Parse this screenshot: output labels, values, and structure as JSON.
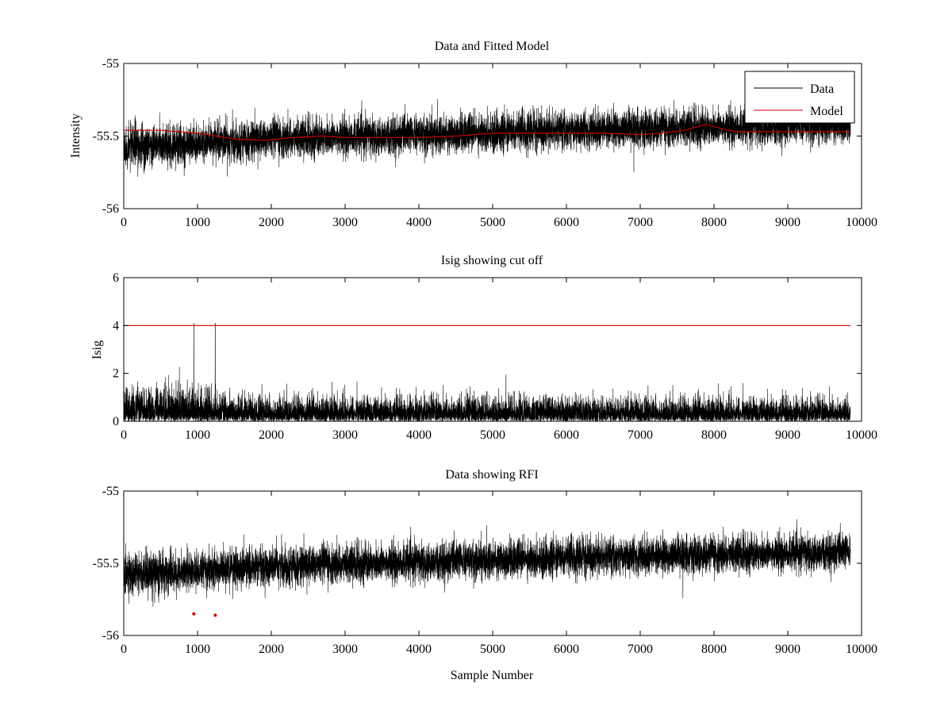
{
  "chart_data": [
    {
      "type": "line",
      "title": "Data and Fitted Model",
      "xlabel": "",
      "ylabel": "Intensity",
      "xlim": [
        0,
        10000
      ],
      "ylim": [
        -56,
        -55
      ],
      "x_ticks": [
        0,
        1000,
        2000,
        3000,
        4000,
        5000,
        6000,
        7000,
        8000,
        9000,
        10000
      ],
      "y_ticks": [
        -56,
        -55.5,
        -55
      ],
      "legend": {
        "placement": "top-right",
        "entries": [
          "Data",
          "Model"
        ]
      },
      "grid": false,
      "series": [
        {
          "name": "Data",
          "color": "#000000",
          "noise": true,
          "n_points": 9850,
          "trend": [
            [
              0,
              -55.58
            ],
            [
              1000,
              -55.55
            ],
            [
              2000,
              -55.52
            ],
            [
              4000,
              -55.49
            ],
            [
              6000,
              -55.46
            ],
            [
              8000,
              -55.44
            ],
            [
              9850,
              -55.42
            ]
          ],
          "spread": [
            [
              0,
              0.13
            ],
            [
              1000,
              0.12
            ],
            [
              9850,
              0.11
            ]
          ]
        },
        {
          "name": "Model",
          "color": "#cc0000",
          "points": [
            [
              0,
              -55.46
            ],
            [
              500,
              -55.46
            ],
            [
              1000,
              -55.48
            ],
            [
              1500,
              -55.52
            ],
            [
              1900,
              -55.53
            ],
            [
              2300,
              -55.51
            ],
            [
              2700,
              -55.5
            ],
            [
              3000,
              -55.51
            ],
            [
              3500,
              -55.51
            ],
            [
              4000,
              -55.51
            ],
            [
              4500,
              -55.5
            ],
            [
              5000,
              -55.48
            ],
            [
              5500,
              -55.48
            ],
            [
              6000,
              -55.48
            ],
            [
              6500,
              -55.48
            ],
            [
              7000,
              -55.49
            ],
            [
              7300,
              -55.48
            ],
            [
              7600,
              -55.46
            ],
            [
              7900,
              -55.42
            ],
            [
              8100,
              -55.45
            ],
            [
              8300,
              -55.47
            ],
            [
              8600,
              -55.47
            ],
            [
              9000,
              -55.47
            ],
            [
              9500,
              -55.47
            ],
            [
              9850,
              -55.47
            ]
          ]
        }
      ]
    },
    {
      "type": "line",
      "title": "Isig showing cut off",
      "xlabel": "",
      "ylabel": "Isig",
      "xlim": [
        0,
        10000
      ],
      "ylim": [
        0,
        6
      ],
      "x_ticks": [
        0,
        1000,
        2000,
        3000,
        4000,
        5000,
        6000,
        7000,
        8000,
        9000,
        10000
      ],
      "y_ticks": [
        0,
        2,
        4,
        6
      ],
      "grid": false,
      "series": [
        {
          "color": "#000000",
          "noise": true,
          "abs": true,
          "n_points": 9850,
          "trend": [
            [
              0,
              0
            ],
            [
              9850,
              0
            ]
          ],
          "spread": [
            [
              0,
              1.2
            ],
            [
              1100,
              1.05
            ],
            [
              1400,
              0.85
            ],
            [
              9850,
              0.8
            ]
          ],
          "spikes": [
            [
              950,
              4.1
            ],
            [
              1240,
              4.1
            ]
          ]
        },
        {
          "color": "#cc0000",
          "points": [
            [
              0,
              4
            ],
            [
              9850,
              4
            ]
          ]
        }
      ]
    },
    {
      "type": "line",
      "title": "Data showing RFI",
      "xlabel": "Sample Number",
      "ylabel": "",
      "xlim": [
        0,
        10000
      ],
      "ylim": [
        -56,
        -55
      ],
      "x_ticks": [
        0,
        1000,
        2000,
        3000,
        4000,
        5000,
        6000,
        7000,
        8000,
        9000,
        10000
      ],
      "y_ticks": [
        -56,
        -55.5,
        -55
      ],
      "grid": false,
      "series": [
        {
          "color": "#000000",
          "noise": true,
          "n_points": 9850,
          "trend": [
            [
              0,
              -55.58
            ],
            [
              1000,
              -55.55
            ],
            [
              2000,
              -55.52
            ],
            [
              4000,
              -55.49
            ],
            [
              6000,
              -55.46
            ],
            [
              8000,
              -55.44
            ],
            [
              9850,
              -55.42
            ]
          ],
          "spread": [
            [
              0,
              0.13
            ],
            [
              1000,
              0.12
            ],
            [
              9850,
              0.11
            ]
          ]
        },
        {
          "color": "#cc0000",
          "markers": true,
          "points": [
            [
              950,
              -55.85
            ],
            [
              1240,
              -55.86
            ]
          ]
        }
      ]
    }
  ]
}
